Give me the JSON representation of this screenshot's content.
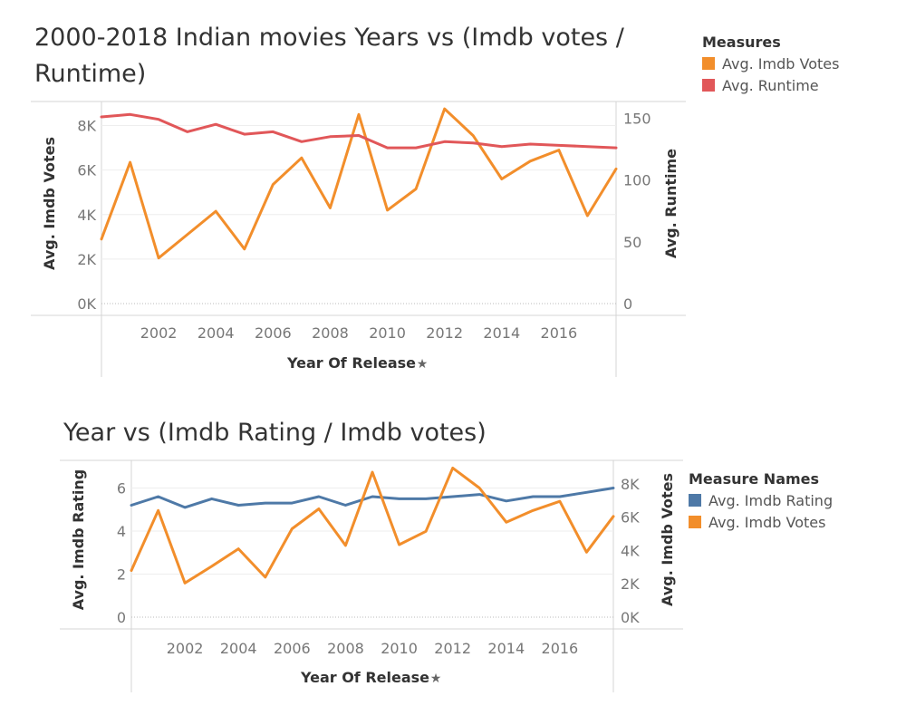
{
  "colors": {
    "votes": "#f28e2b",
    "runtime": "#e15759",
    "rating": "#4e79a7"
  },
  "chart_data": [
    {
      "type": "line",
      "title": "2000-2018 Indian movies Years vs (Imdb votes / Runtime)",
      "xlabel": "Year Of Release",
      "x_ticks": [
        "2002",
        "2004",
        "2006",
        "2008",
        "2010",
        "2012",
        "2014",
        "2016"
      ],
      "x": [
        2000,
        2001,
        2002,
        2003,
        2004,
        2005,
        2006,
        2007,
        2008,
        2009,
        2010,
        2011,
        2012,
        2013,
        2014,
        2015,
        2016,
        2017,
        2018
      ],
      "xlim": [
        2000,
        2018
      ],
      "axes": {
        "left": {
          "label": "Avg. Imdb Votes",
          "ticks": [
            "0K",
            "2K",
            "4K",
            "6K",
            "8K"
          ],
          "tick_values": [
            0,
            2000,
            4000,
            6000,
            8000
          ],
          "lim": [
            0,
            9000
          ]
        },
        "right": {
          "label": "Avg. Runtime",
          "ticks": [
            "0",
            "50",
            "100",
            "150"
          ],
          "tick_values": [
            0,
            50,
            100,
            150
          ],
          "lim": [
            0,
            162
          ]
        }
      },
      "legend": {
        "title": "Measures",
        "position": "top-right",
        "entries": [
          "Avg. Imdb Votes",
          "Avg. Runtime"
        ]
      },
      "series": [
        {
          "name": "Avg. Imdb Votes",
          "axis": "left",
          "color": "#f28e2b",
          "values": [
            2900,
            6350,
            2050,
            3100,
            4150,
            2450,
            5350,
            6550,
            4300,
            8500,
            4200,
            5150,
            8750,
            7550,
            5600,
            6400,
            6900,
            3950,
            6050
          ]
        },
        {
          "name": "Avg. Runtime",
          "axis": "right",
          "color": "#e15759",
          "values": [
            151,
            153,
            149,
            139,
            145,
            137,
            139,
            131,
            135,
            136,
            126,
            126,
            131,
            130,
            127,
            129,
            128,
            127,
            126
          ]
        }
      ]
    },
    {
      "type": "line",
      "title": "Year vs (Imdb Rating / Imdb votes)",
      "xlabel": "Year Of Release",
      "x_ticks": [
        "2002",
        "2004",
        "2006",
        "2008",
        "2010",
        "2012",
        "2014",
        "2016"
      ],
      "x": [
        2000,
        2001,
        2002,
        2003,
        2004,
        2005,
        2006,
        2007,
        2008,
        2009,
        2010,
        2011,
        2012,
        2013,
        2014,
        2015,
        2016,
        2017,
        2018
      ],
      "xlim": [
        2000,
        2018
      ],
      "axes": {
        "left": {
          "label": "Avg. Imdb Rating",
          "ticks": [
            "0",
            "2",
            "4",
            "6"
          ],
          "tick_values": [
            0,
            2,
            4,
            6
          ],
          "lim": [
            0,
            7.2
          ]
        },
        "right": {
          "label": "Avg. Imdb Votes",
          "ticks": [
            "0K",
            "2K",
            "4K",
            "6K",
            "8K"
          ],
          "tick_values": [
            0,
            2000,
            4000,
            6000,
            8000
          ],
          "lim": [
            0,
            9300
          ]
        }
      },
      "legend": {
        "title": "Measure Names",
        "position": "right",
        "entries": [
          "Avg. Imdb Rating",
          "Avg. Imdb Votes"
        ]
      },
      "series": [
        {
          "name": "Avg. Imdb Rating",
          "axis": "left",
          "color": "#4e79a7",
          "values": [
            5.2,
            5.6,
            5.1,
            5.5,
            5.2,
            5.3,
            5.3,
            5.6,
            5.2,
            5.6,
            5.5,
            5.5,
            5.6,
            5.7,
            5.4,
            5.6,
            5.6,
            5.8,
            6.0
          ]
        },
        {
          "name": "Avg. Imdb Votes",
          "axis": "right",
          "color": "#f28e2b",
          "values": [
            2800,
            6400,
            2050,
            3050,
            4100,
            2400,
            5300,
            6500,
            4300,
            8700,
            4350,
            5150,
            8950,
            7750,
            5700,
            6400,
            6950,
            3900,
            6050
          ]
        }
      ]
    }
  ]
}
